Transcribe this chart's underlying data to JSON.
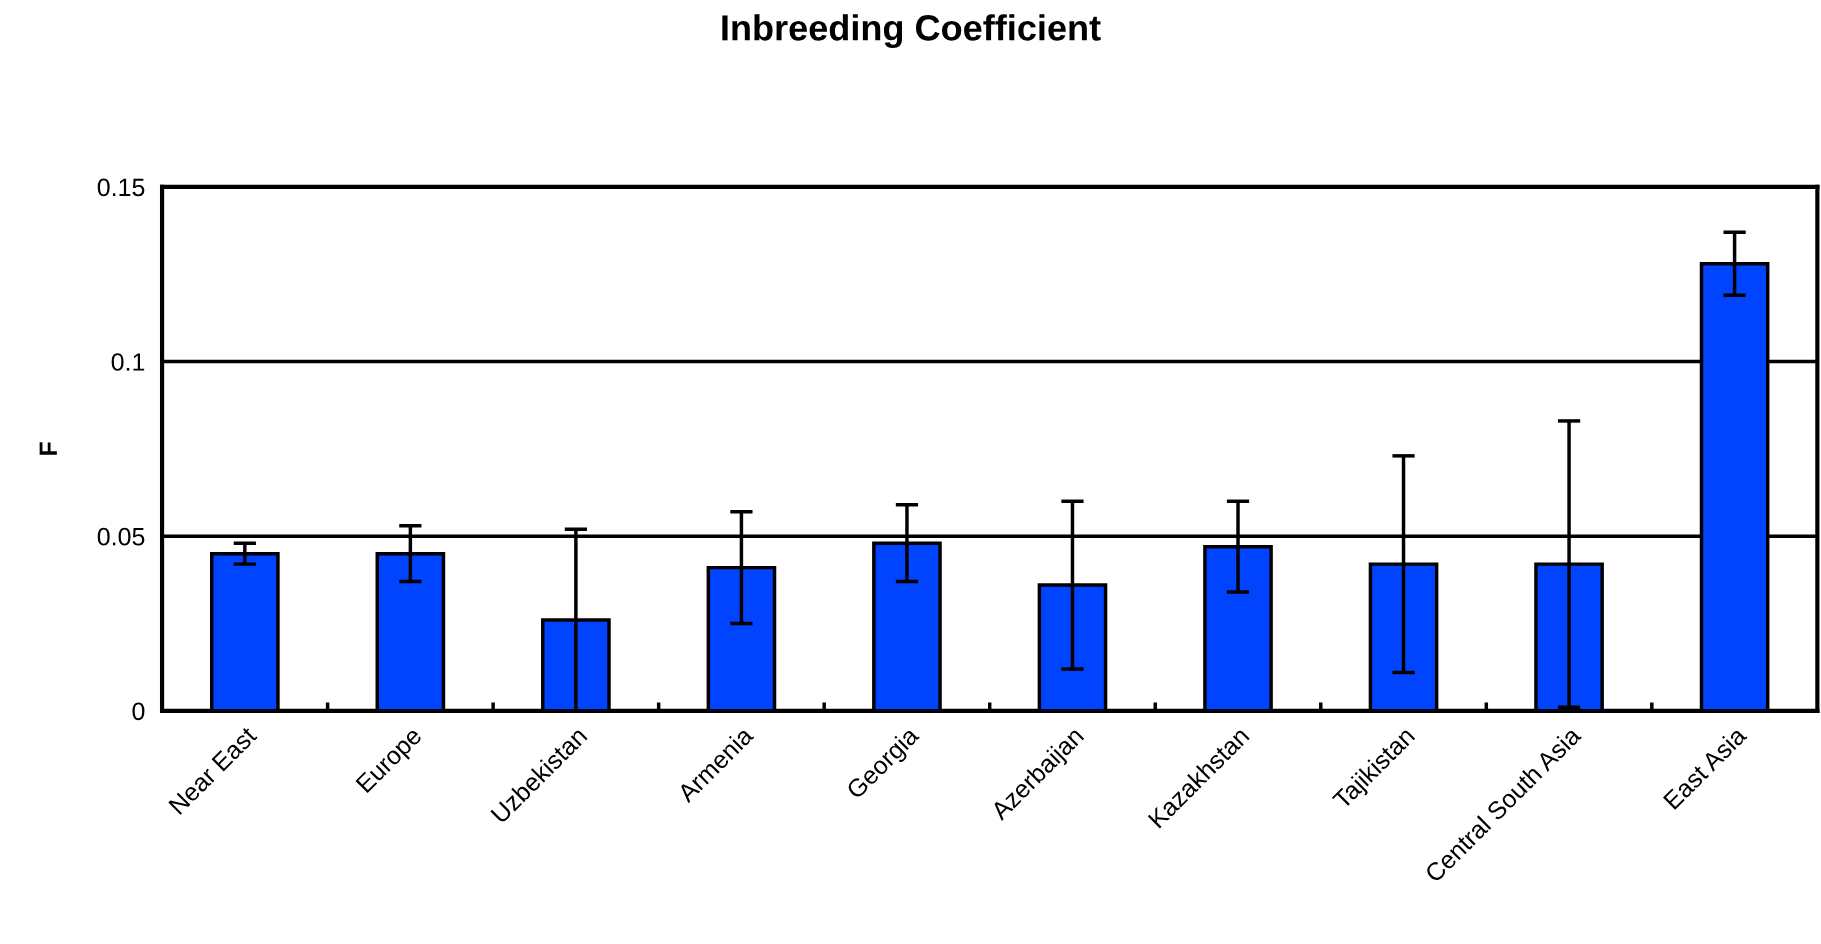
{
  "chart_data": {
    "type": "bar",
    "title": "Inbreeding Coefficient",
    "ylabel": "F",
    "categories": [
      "Near East",
      "Europe",
      "Uzbekistan",
      "Armenia",
      "Georgia",
      "Azerbaijan",
      "Kazakhstan",
      "Tajikistan",
      "Central South Asia",
      "East Asia"
    ],
    "values": [
      0.045,
      0.045,
      0.026,
      0.041,
      0.048,
      0.036,
      0.047,
      0.042,
      0.042,
      0.128
    ],
    "errors": [
      0.003,
      0.008,
      0.026,
      0.016,
      0.011,
      0.024,
      0.013,
      0.031,
      0.041,
      0.009
    ],
    "color": "#0044ff",
    "ylim": [
      0,
      0.15
    ],
    "yticks": [
      0,
      0.05,
      0.1,
      0.15
    ],
    "grid": "y",
    "legend": false
  }
}
